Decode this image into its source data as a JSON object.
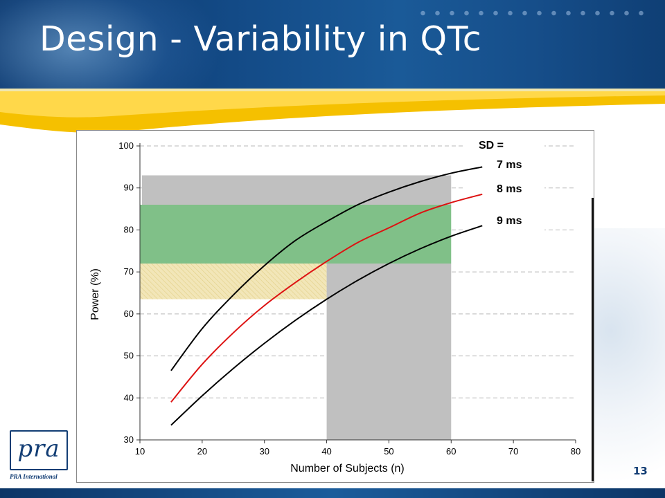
{
  "slide": {
    "title": "Design - Variability in QTc",
    "page_number": "13",
    "logo_mark": "pra",
    "logo_text": "PRA International"
  },
  "colors": {
    "header_blue": "#134a86",
    "swoosh_yellow": "#f5c000",
    "grey_band": "#c0c0c0",
    "green_band": "#80c088",
    "hatch_band": "#f2e6b8",
    "curve_red": "#dd1111",
    "curve_black": "#000000"
  },
  "chart_data": {
    "type": "line",
    "title": "",
    "xlabel": "Number of Subjects (n)",
    "ylabel": "Power (%)",
    "xlim": [
      10,
      80
    ],
    "ylim": [
      30,
      100
    ],
    "xticks": [
      10,
      20,
      30,
      40,
      50,
      60,
      70,
      80
    ],
    "yticks": [
      30,
      40,
      50,
      60,
      70,
      80,
      90,
      100
    ],
    "grid": "horizontal dashed",
    "legend_title": "SD =",
    "legend_position": "top-right",
    "x": [
      15,
      20,
      25,
      30,
      35,
      40,
      45,
      50,
      55,
      60,
      65
    ],
    "series": [
      {
        "name": "7 ms",
        "color": "#000000",
        "values": [
          46.5,
          56.5,
          64.5,
          71.5,
          77.5,
          82,
          86,
          89,
          91.5,
          93.5,
          95
        ]
      },
      {
        "name": "8 ms",
        "color": "#dd1111",
        "values": [
          39,
          48,
          55.5,
          62,
          67.5,
          72.5,
          77,
          80.5,
          84,
          86.5,
          88.5
        ]
      },
      {
        "name": "9 ms",
        "color": "#000000",
        "values": [
          33.5,
          40.5,
          47,
          53,
          58.5,
          63.5,
          68,
          72,
          75.5,
          78.5,
          81
        ]
      }
    ],
    "bands": [
      {
        "kind": "grey",
        "x": [
          10,
          60
        ],
        "y": [
          86,
          93
        ]
      },
      {
        "kind": "green",
        "x": [
          10,
          60
        ],
        "y": [
          72,
          86
        ]
      },
      {
        "kind": "hatch",
        "x": [
          10,
          40
        ],
        "y": [
          63.5,
          72
        ]
      },
      {
        "kind": "grey",
        "x": [
          40,
          60
        ],
        "y": [
          30,
          72
        ]
      }
    ]
  }
}
